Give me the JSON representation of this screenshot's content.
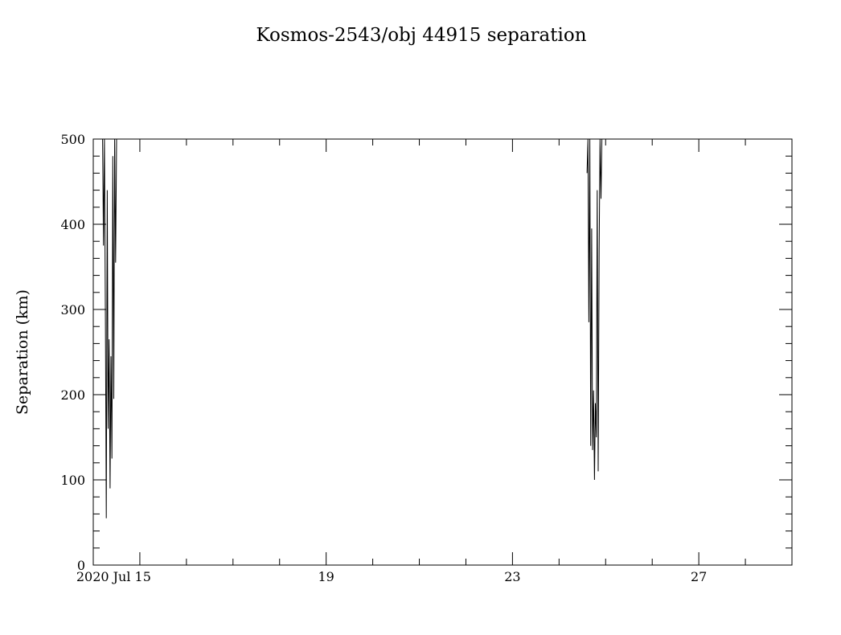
{
  "chart_data": {
    "type": "line",
    "title": "Kosmos-2543/obj 44915 separation",
    "xlabel": "",
    "ylabel": "Separation (km)",
    "x_units": "days (July 2020)",
    "xlim": [
      14.0,
      29.0
    ],
    "ylim": [
      0,
      500
    ],
    "grid": false,
    "x_ticks": [
      {
        "value": 15,
        "label": "2020 Jul 15"
      },
      {
        "value": 19,
        "label": "19"
      },
      {
        "value": 23,
        "label": "23"
      },
      {
        "value": 27,
        "label": "27"
      }
    ],
    "y_ticks": [
      {
        "value": 0,
        "label": "0"
      },
      {
        "value": 100,
        "label": "100"
      },
      {
        "value": 200,
        "label": "200"
      },
      {
        "value": 300,
        "label": "300"
      },
      {
        "value": 400,
        "label": "400"
      },
      {
        "value": 500,
        "label": "500"
      }
    ],
    "series": [
      {
        "points": [
          [
            14.2,
            500
          ],
          [
            14.22,
            375
          ],
          [
            14.24,
            500
          ],
          [
            14.26,
            290
          ],
          [
            14.28,
            55
          ],
          [
            14.3,
            440
          ],
          [
            14.32,
            160
          ],
          [
            14.34,
            265
          ],
          [
            14.36,
            90
          ],
          [
            14.38,
            245
          ],
          [
            14.4,
            125
          ],
          [
            14.42,
            480
          ],
          [
            14.44,
            195
          ],
          [
            14.46,
            500
          ],
          [
            14.48,
            355
          ],
          [
            14.5,
            500
          ]
        ]
      },
      {
        "points": [
          [
            24.6,
            460
          ],
          [
            24.62,
            500
          ],
          [
            24.64,
            285
          ],
          [
            24.66,
            500
          ],
          [
            24.68,
            140
          ],
          [
            24.7,
            395
          ],
          [
            24.72,
            135
          ],
          [
            24.74,
            205
          ],
          [
            24.76,
            100
          ],
          [
            24.78,
            190
          ],
          [
            24.8,
            150
          ],
          [
            24.82,
            440
          ],
          [
            24.84,
            110
          ],
          [
            24.86,
            370
          ],
          [
            24.88,
            500
          ],
          [
            24.9,
            430
          ],
          [
            24.92,
            500
          ]
        ]
      }
    ]
  }
}
